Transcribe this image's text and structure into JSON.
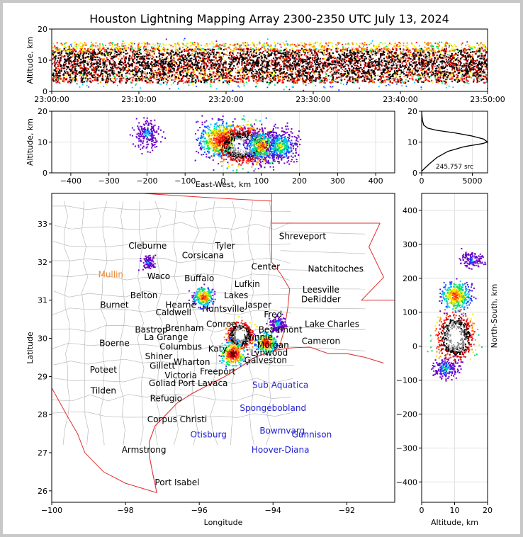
{
  "chart_data": [
    {
      "type": "heatmap",
      "id": "time-altitude",
      "title": "Houston Lightning Mapping Array 2300-2350 UTC July 13, 2024",
      "ylabel": "Altitude, km",
      "ylim": [
        0,
        20
      ],
      "yticks": [
        "0",
        "10",
        "20"
      ],
      "xticks": [
        "23:00:00",
        "23:10:00",
        "23:20:00",
        "23:30:00",
        "23:40:00",
        "23:50:00"
      ],
      "xlim_minutes": [
        0,
        50
      ],
      "altitude_core_km": [
        3,
        14
      ]
    },
    {
      "type": "heatmap",
      "id": "east-west-altitude",
      "xlabel": "East-West, km",
      "ylabel": "Altitude, km",
      "xlim": [
        -450,
        450
      ],
      "ylim": [
        0,
        20
      ],
      "xticks": [
        "−400",
        "−300",
        "−200",
        "−100",
        "0",
        "100",
        "200",
        "300",
        "400"
      ],
      "yticks": [
        "0",
        "10",
        "20"
      ],
      "clusters_km": [
        {
          "x": -200,
          "alt": 13,
          "intensity": 0.15
        },
        {
          "x": -10,
          "alt": 11,
          "intensity": 0.6
        },
        {
          "x": 50,
          "alt": 9,
          "intensity": 1.0
        },
        {
          "x": 100,
          "alt": 9,
          "intensity": 0.45
        },
        {
          "x": 150,
          "alt": 9,
          "intensity": 0.35
        }
      ]
    },
    {
      "type": "line",
      "id": "altitude-histogram",
      "xlim": [
        0,
        6500
      ],
      "ylim": [
        0,
        20
      ],
      "xticks": [
        "0",
        "5000"
      ],
      "yticks": [
        "0",
        "10",
        "20"
      ],
      "annotation": "245,757 src",
      "profile": [
        [
          0,
          0.5
        ],
        [
          300,
          1.5
        ],
        [
          800,
          3
        ],
        [
          1500,
          5
        ],
        [
          2600,
          7
        ],
        [
          4200,
          8.5
        ],
        [
          6000,
          9.5
        ],
        [
          6500,
          10
        ],
        [
          6100,
          11
        ],
        [
          4900,
          12
        ],
        [
          3200,
          13
        ],
        [
          1500,
          13.8
        ],
        [
          600,
          14.5
        ],
        [
          200,
          15.5
        ],
        [
          80,
          17
        ],
        [
          20,
          19
        ],
        [
          0,
          20
        ]
      ]
    },
    {
      "type": "scatter",
      "id": "map",
      "xlabel": "Longitude",
      "ylabel": "Latitude",
      "xlim": [
        -100,
        -90.7
      ],
      "ylim": [
        25.7,
        33.8
      ],
      "xticks": [
        "−100",
        "−98",
        "−96",
        "−94",
        "−92"
      ],
      "yticks": [
        "26",
        "27",
        "28",
        "29",
        "30",
        "31",
        "32",
        "33"
      ],
      "storms": [
        {
          "lon": -94.9,
          "lat": 30.1,
          "size": 1.0
        },
        {
          "lon": -94.2,
          "lat": 29.9,
          "size": 0.6
        },
        {
          "lon": -95.1,
          "lat": 29.6,
          "size": 0.7
        },
        {
          "lon": -95.9,
          "lat": 31.1,
          "size": 0.55
        },
        {
          "lon": -97.4,
          "lat": 32.0,
          "size": 0.15
        },
        {
          "lon": -93.9,
          "lat": 30.4,
          "size": 0.25
        }
      ]
    },
    {
      "type": "heatmap",
      "id": "altitude-north-south",
      "xlabel": "Altitude, km",
      "ylabel": "North-South, km",
      "xlim": [
        0,
        20
      ],
      "ylim": [
        -460,
        450
      ],
      "xticks": [
        "0",
        "10",
        "20"
      ],
      "yticks": [
        "−400",
        "−300",
        "−200",
        "−100",
        "0",
        "100",
        "200",
        "300",
        "400"
      ],
      "clusters_km": [
        {
          "y": 30,
          "alt": 10,
          "intensity": 1.0
        },
        {
          "y": 150,
          "alt": 10,
          "intensity": 0.5
        },
        {
          "y": 255,
          "alt": 15,
          "intensity": 0.1
        },
        {
          "y": -65,
          "alt": 7,
          "intensity": 0.2
        }
      ]
    }
  ],
  "cities_texas": [
    {
      "name": "Cleburne",
      "lon": -97.4,
      "lat": 32.35
    },
    {
      "name": "Corsicana",
      "lon": -95.9,
      "lat": 32.1
    },
    {
      "name": "Tyler",
      "lon": -95.3,
      "lat": 32.35
    },
    {
      "name": "Waco",
      "lon": -97.1,
      "lat": 31.55
    },
    {
      "name": "Buffalo",
      "lon": -96.0,
      "lat": 31.5
    },
    {
      "name": "Center",
      "lon": -94.2,
      "lat": 31.8
    },
    {
      "name": "Lufkin",
      "lon": -94.7,
      "lat": 31.35
    },
    {
      "name": "Belton",
      "lon": -97.5,
      "lat": 31.05
    },
    {
      "name": "Lakes",
      "lon": -95.0,
      "lat": 31.05
    },
    {
      "name": "Burnet",
      "lon": -98.3,
      "lat": 30.8
    },
    {
      "name": "Hearne",
      "lon": -96.5,
      "lat": 30.8
    },
    {
      "name": "Huntsville",
      "lon": -95.35,
      "lat": 30.7
    },
    {
      "name": "Jasper",
      "lon": -94.4,
      "lat": 30.8
    },
    {
      "name": "Caldwell",
      "lon": -96.7,
      "lat": 30.6
    },
    {
      "name": "Fred",
      "lon": -94.0,
      "lat": 30.55
    },
    {
      "name": "Bastrop",
      "lon": -97.3,
      "lat": 30.15
    },
    {
      "name": "Brenham",
      "lon": -96.4,
      "lat": 30.2
    },
    {
      "name": "Conroe",
      "lon": -95.4,
      "lat": 30.3
    },
    {
      "name": "Beaumont",
      "lon": -93.8,
      "lat": 30.15
    },
    {
      "name": "La Grange",
      "lon": -96.9,
      "lat": 29.95
    },
    {
      "name": "Winnie",
      "lon": -94.4,
      "lat": 29.95
    },
    {
      "name": "Boerne",
      "lon": -98.3,
      "lat": 29.8
    },
    {
      "name": "Columbus",
      "lon": -96.5,
      "lat": 29.7
    },
    {
      "name": "Katy",
      "lon": -95.5,
      "lat": 29.65
    },
    {
      "name": "Morgan",
      "lon": -94.0,
      "lat": 29.75
    },
    {
      "name": "Lynwood",
      "lon": -94.1,
      "lat": 29.55
    },
    {
      "name": "Shiner",
      "lon": -97.1,
      "lat": 29.45
    },
    {
      "name": "Wharton",
      "lon": -96.2,
      "lat": 29.3
    },
    {
      "name": "Galveston",
      "lon": -94.2,
      "lat": 29.35
    },
    {
      "name": "Poteet",
      "lon": -98.6,
      "lat": 29.1
    },
    {
      "name": "Gillett",
      "lon": -97.0,
      "lat": 29.2
    },
    {
      "name": "Freeport",
      "lon": -95.5,
      "lat": 29.05
    },
    {
      "name": "Victoria",
      "lon": -96.5,
      "lat": 28.95
    },
    {
      "name": "Goliad",
      "lon": -97.0,
      "lat": 28.75
    },
    {
      "name": "Port Lavaca",
      "lon": -95.9,
      "lat": 28.75
    },
    {
      "name": "Tilden",
      "lon": -98.6,
      "lat": 28.55
    },
    {
      "name": "Refugio",
      "lon": -96.9,
      "lat": 28.35
    },
    {
      "name": "Corpus Christi",
      "lon": -96.6,
      "lat": 27.8
    },
    {
      "name": "Armstrong",
      "lon": -97.5,
      "lat": 27.0
    },
    {
      "name": "Port Isabel",
      "lon": -96.6,
      "lat": 26.15
    }
  ],
  "cities_louisiana": [
    {
      "name": "Shreveport",
      "lon": -93.2,
      "lat": 32.6
    },
    {
      "name": "Natchitoches",
      "lon": -92.3,
      "lat": 31.75
    },
    {
      "name": "Leesville",
      "lon": -92.7,
      "lat": 31.2
    },
    {
      "name": "DeRidder",
      "lon": -92.7,
      "lat": 30.95
    },
    {
      "name": "Lake Charles",
      "lon": -92.4,
      "lat": 30.3
    },
    {
      "name": "Cameron",
      "lon": -92.7,
      "lat": 29.85
    }
  ],
  "stations_orange": [
    {
      "name": "Mullin",
      "lon": -98.4,
      "lat": 31.6
    }
  ],
  "stations_blue": [
    {
      "name": "Sub Aquatica",
      "lon": -93.8,
      "lat": 28.7
    },
    {
      "name": "Spongebobland",
      "lon": -94.0,
      "lat": 28.1
    },
    {
      "name": "Bowmvarg",
      "lon": -93.75,
      "lat": 27.5
    },
    {
      "name": "Gunnison",
      "lon": -92.95,
      "lat": 27.4
    },
    {
      "name": "Otisburg",
      "lon": -95.75,
      "lat": 27.4
    },
    {
      "name": "Hoover-Diana",
      "lon": -93.8,
      "lat": 27.0
    }
  ],
  "colors": {
    "coast": "#e03030",
    "county": "#bbbbbb",
    "grid": "#e2e2e2",
    "city_text": "#000000",
    "orange_station": "#e8893a",
    "blue_station": "#1f1fd0"
  }
}
